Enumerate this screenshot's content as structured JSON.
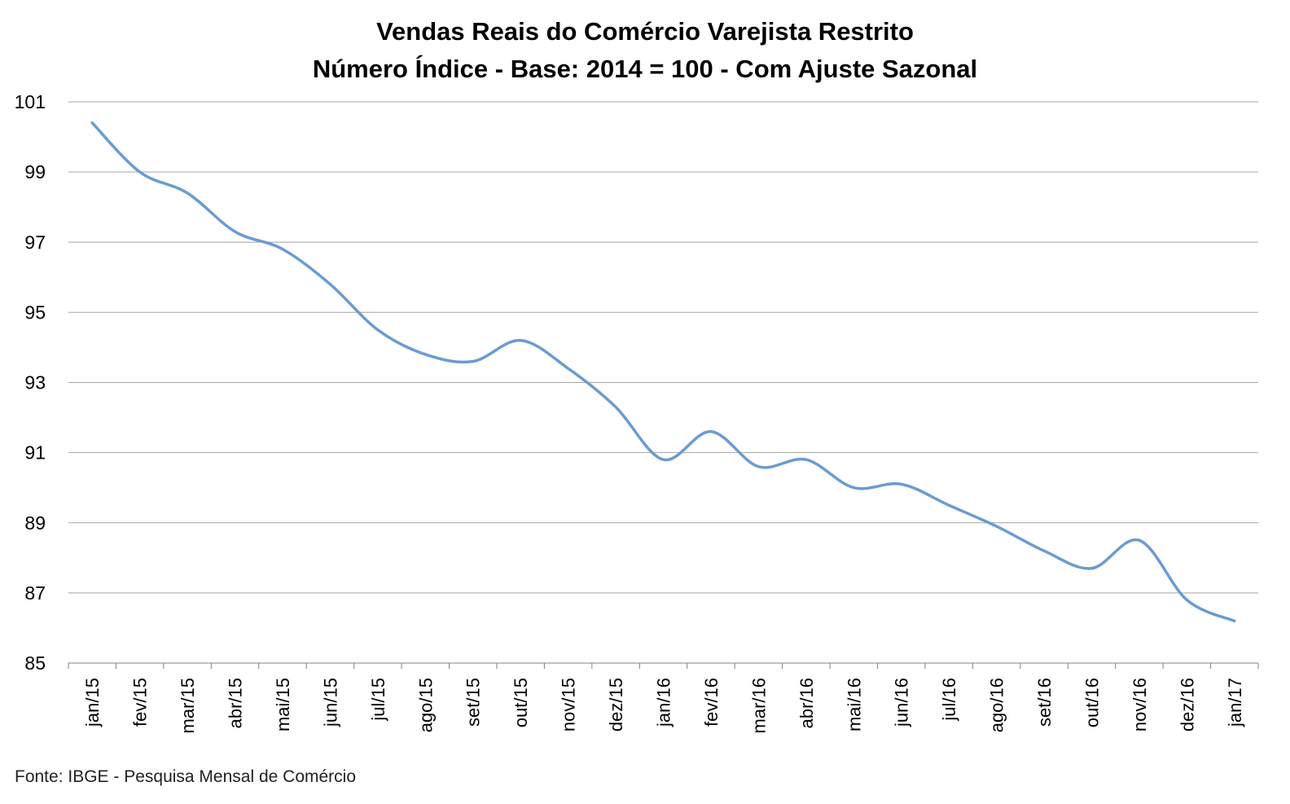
{
  "title_line1": "Vendas Reais do Comércio Varejista Restrito",
  "title_line2": "Número Índice - Base: 2014 = 100 - Com Ajuste Sazonal",
  "source": "Fonte: IBGE - Pesquisa Mensal de Comércio",
  "colors": {
    "line": "#6b9bd1",
    "grid": "#a6a6a6",
    "axis": "#808080"
  },
  "chart_data": {
    "type": "line",
    "title": "Vendas Reais do Comércio Varejista Restrito — Número Índice - Base: 2014 = 100 - Com Ajuste Sazonal",
    "xlabel": "",
    "ylabel": "",
    "ylim": [
      85,
      101
    ],
    "yticks": [
      85,
      87,
      89,
      91,
      93,
      95,
      97,
      99,
      101
    ],
    "grid": true,
    "legend": "none",
    "categories": [
      "jan/15",
      "fev/15",
      "mar/15",
      "abr/15",
      "mai/15",
      "jun/15",
      "jul/15",
      "ago/15",
      "set/15",
      "out/15",
      "nov/15",
      "dez/15",
      "jan/16",
      "fev/16",
      "mar/16",
      "abr/16",
      "mai/16",
      "jun/16",
      "jul/16",
      "ago/16",
      "set/16",
      "out/16",
      "nov/16",
      "dez/16",
      "jan/17"
    ],
    "series": [
      {
        "values": [
          100.4,
          99.0,
          98.4,
          97.3,
          96.8,
          95.8,
          94.5,
          93.8,
          93.6,
          94.2,
          93.4,
          92.3,
          90.8,
          91.6,
          90.6,
          90.8,
          90.0,
          90.1,
          89.5,
          88.9,
          88.2,
          87.7,
          88.5,
          86.8,
          86.2
        ]
      }
    ]
  }
}
